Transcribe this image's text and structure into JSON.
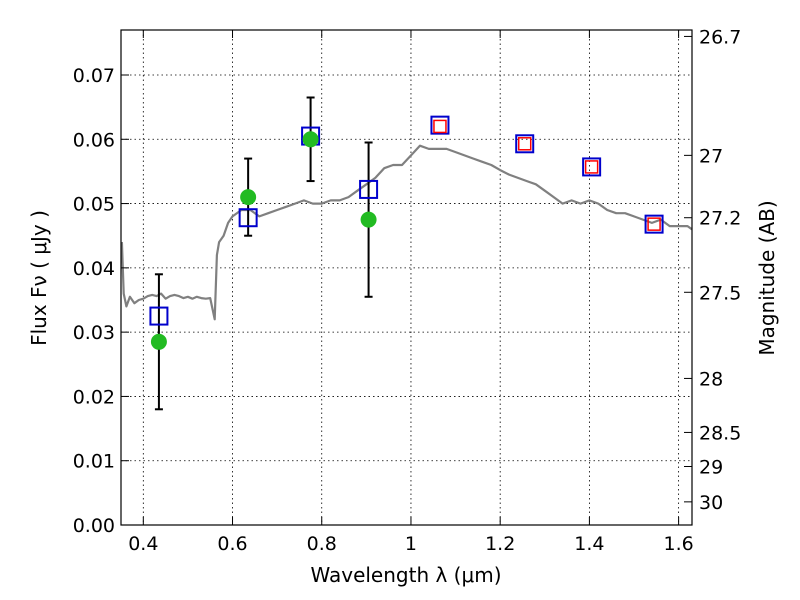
{
  "chart_data": {
    "type": "scatter",
    "xlabel": "Wavelength  λ (μm)",
    "ylabel": "Flux  Fν  ( μJy )",
    "y2label": "Magnitude (AB)",
    "xlim": [
      0.35,
      1.63
    ],
    "ylim": [
      0.0,
      0.077
    ],
    "grid": true,
    "x_ticks": [
      0.4,
      0.6,
      0.8,
      1.0,
      1.2,
      1.4,
      1.6
    ],
    "x_tick_labels": [
      "0.4",
      "0.6",
      "0.8",
      "1",
      "1.2",
      "1.4",
      "1.6"
    ],
    "y_ticks": [
      0.0,
      0.01,
      0.02,
      0.03,
      0.04,
      0.05,
      0.06,
      0.07
    ],
    "y_tick_labels": [
      "0.00",
      "0.01",
      "0.02",
      "0.03",
      "0.04",
      "0.05",
      "0.06",
      "0.07"
    ],
    "y2_ticks": [
      {
        "flux": 0.076,
        "label": "26.7"
      },
      {
        "flux": 0.0575,
        "label": "27"
      },
      {
        "flux": 0.0478,
        "label": "27.2"
      },
      {
        "flux": 0.0362,
        "label": "27.5"
      },
      {
        "flux": 0.0228,
        "label": "28"
      },
      {
        "flux": 0.0144,
        "label": "28.5"
      },
      {
        "flux": 0.0091,
        "label": "29"
      },
      {
        "flux": 0.0036,
        "label": "30"
      }
    ],
    "series": [
      {
        "kind": "model_spectrum",
        "color": "#808080",
        "x": [
          0.352,
          0.356,
          0.362,
          0.37,
          0.38,
          0.39,
          0.4,
          0.41,
          0.42,
          0.43,
          0.44,
          0.45,
          0.46,
          0.47,
          0.48,
          0.49,
          0.5,
          0.51,
          0.52,
          0.53,
          0.54,
          0.55,
          0.56,
          0.565,
          0.57,
          0.575,
          0.58,
          0.59,
          0.6,
          0.62,
          0.64,
          0.66,
          0.68,
          0.7,
          0.72,
          0.74,
          0.76,
          0.78,
          0.8,
          0.82,
          0.84,
          0.86,
          0.88,
          0.9,
          0.92,
          0.94,
          0.96,
          0.98,
          1.0,
          1.02,
          1.04,
          1.06,
          1.08,
          1.1,
          1.12,
          1.14,
          1.16,
          1.18,
          1.2,
          1.22,
          1.24,
          1.26,
          1.28,
          1.3,
          1.32,
          1.34,
          1.36,
          1.38,
          1.4,
          1.42,
          1.44,
          1.46,
          1.48,
          1.5,
          1.52,
          1.54,
          1.56,
          1.58,
          1.6,
          1.62,
          1.63
        ],
        "y": [
          0.044,
          0.036,
          0.034,
          0.0355,
          0.0345,
          0.035,
          0.0352,
          0.0356,
          0.0358,
          0.0356,
          0.036,
          0.0352,
          0.0356,
          0.0358,
          0.0356,
          0.0353,
          0.0355,
          0.0352,
          0.0355,
          0.0353,
          0.0352,
          0.0353,
          0.032,
          0.042,
          0.044,
          0.0445,
          0.045,
          0.047,
          0.048,
          0.049,
          0.049,
          0.048,
          0.0485,
          0.049,
          0.0495,
          0.05,
          0.0505,
          0.05,
          0.05,
          0.0505,
          0.0505,
          0.051,
          0.052,
          0.053,
          0.054,
          0.0555,
          0.056,
          0.056,
          0.0575,
          0.059,
          0.0585,
          0.0585,
          0.0585,
          0.058,
          0.0575,
          0.057,
          0.0565,
          0.056,
          0.0552,
          0.0545,
          0.054,
          0.0535,
          0.053,
          0.052,
          0.051,
          0.05,
          0.0505,
          0.05,
          0.0505,
          0.05,
          0.049,
          0.0485,
          0.0485,
          0.048,
          0.0475,
          0.047,
          0.0475,
          0.0465,
          0.0465,
          0.0465,
          0.046
        ]
      },
      {
        "kind": "model_photometry",
        "marker": "square",
        "color": "#0000cc",
        "x": [
          0.435,
          0.635,
          0.775,
          0.905,
          1.065,
          1.255,
          1.405,
          1.545
        ],
        "y": [
          0.0325,
          0.0478,
          0.0605,
          0.0522,
          0.0622,
          0.0593,
          0.0557,
          0.0468
        ]
      },
      {
        "kind": "observed_photometry",
        "marker": "circle",
        "color": "#22bb22",
        "x": [
          0.435,
          0.635,
          0.775,
          0.905
        ],
        "y": [
          0.0285,
          0.051,
          0.06,
          0.0475
        ],
        "yerr_low": [
          0.018,
          0.045,
          0.0535,
          0.0355
        ],
        "yerr_high": [
          0.039,
          0.057,
          0.0665,
          0.0595
        ]
      },
      {
        "kind": "observed_photometry_red",
        "marker": "square",
        "color": "#ff0000",
        "x": [
          1.065,
          1.255,
          1.405,
          1.545
        ],
        "y": [
          0.062,
          0.0593,
          0.0557,
          0.0468
        ]
      }
    ]
  }
}
